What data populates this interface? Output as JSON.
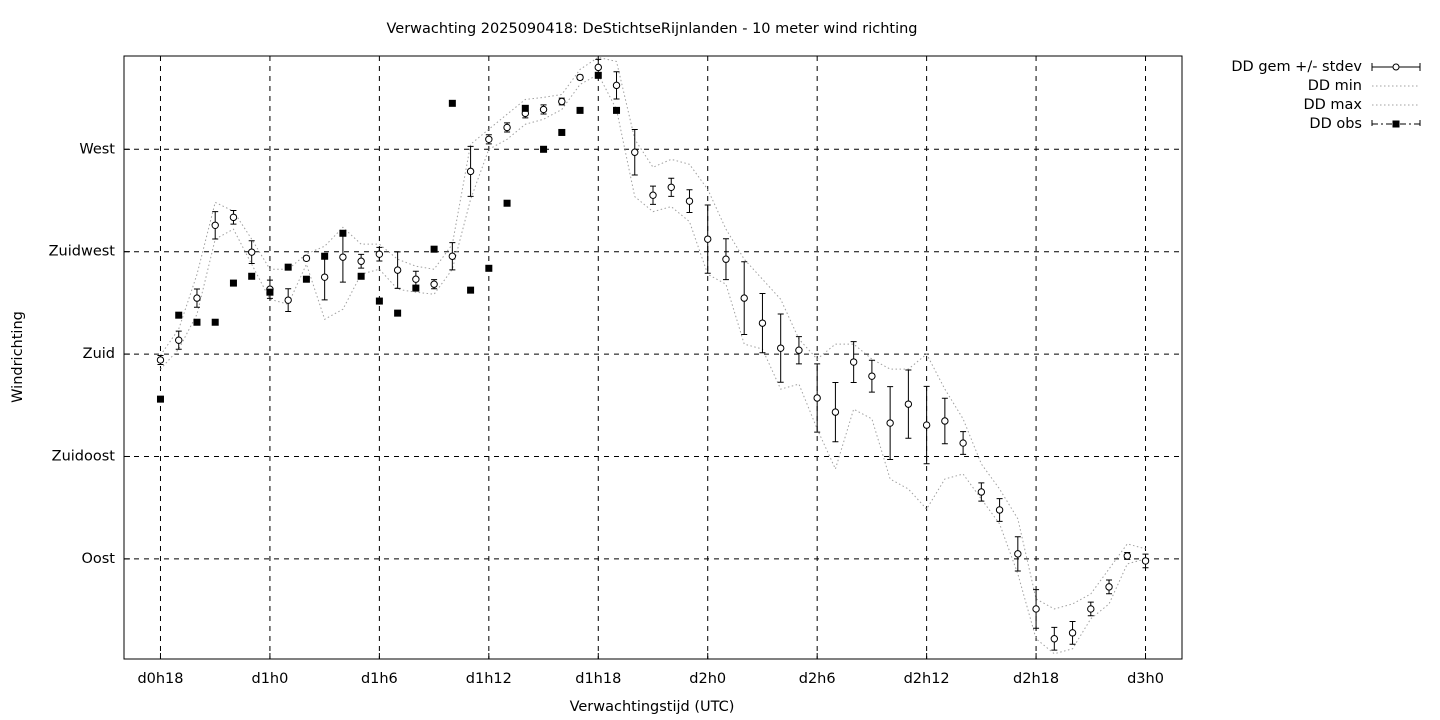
{
  "chart_data": {
    "type": "errorbar",
    "title": "Verwachting 2025090418: DeStichtseRijnlanden - 10 meter wind richting",
    "x_label": "Verwachtingstijd (UTC)",
    "y_label": "Windrichting",
    "xlim": [
      16,
      74
    ],
    "ylim": [
      46,
      311
    ],
    "xticks": [
      {
        "value": 18,
        "label": "d0h18"
      },
      {
        "value": 24,
        "label": "d1h0"
      },
      {
        "value": 30,
        "label": "d1h6"
      },
      {
        "value": 36,
        "label": "d1h12"
      },
      {
        "value": 42,
        "label": "d1h18"
      },
      {
        "value": 48,
        "label": "d2h0"
      },
      {
        "value": 54,
        "label": "d2h6"
      },
      {
        "value": 60,
        "label": "d2h12"
      },
      {
        "value": 66,
        "label": "d2h18"
      },
      {
        "value": 72,
        "label": "d3h0"
      }
    ],
    "yticks": [
      {
        "value": 90,
        "label": "Oost"
      },
      {
        "value": 135,
        "label": "Zuidoost"
      },
      {
        "value": 180,
        "label": "Zuid"
      },
      {
        "value": 225,
        "label": "Zuidwest"
      },
      {
        "value": 270,
        "label": "West"
      }
    ],
    "grid": true,
    "legend": "outside-top-right",
    "x": [
      18,
      19,
      20,
      21,
      22,
      23,
      24,
      25,
      26,
      27,
      28,
      29,
      30,
      31,
      32,
      33,
      34,
      35,
      36,
      37,
      38,
      39,
      40,
      41,
      42,
      43,
      44,
      45,
      46,
      47,
      48,
      49,
      50,
      51,
      52,
      53,
      54,
      55,
      56,
      57,
      58,
      59,
      60,
      61,
      62,
      63,
      64,
      65,
      66,
      67,
      68,
      69,
      70,
      71,
      72
    ],
    "series": [
      {
        "name": "DD gem +/- stdev",
        "style": "errorbars",
        "color": "#000000",
        "values": [
          177.4,
          186.1,
          204.6,
          236.6,
          240.1,
          224.8,
          208.5,
          203.7,
          222.1,
          213.8,
          222.6,
          220.8,
          223.9,
          216.9,
          212.9,
          210.7,
          223,
          260.3,
          274.4,
          279.6,
          285.8,
          287.5,
          291,
          301.6,
          306,
          298.1,
          268.7,
          249.8,
          253.3,
          247.2,
          230.5,
          221.7,
          204.6,
          193.6,
          182.6,
          181.7,
          160.7,
          154.5,
          176.5,
          170.3,
          149.7,
          158,
          148.8,
          150.6,
          140.9,
          119.4,
          111.5,
          92.2,
          68,
          54.9,
          57.5,
          68,
          77.7,
          91.3,
          89.1
        ],
        "errors": [
          2,
          4,
          4,
          6,
          3,
          5,
          4,
          5,
          1,
          10,
          11,
          3,
          3,
          8,
          3.5,
          2,
          6,
          11,
          2,
          2,
          2,
          2,
          1.5,
          1,
          3.5,
          6,
          10,
          4,
          4,
          5,
          15,
          9,
          16,
          13,
          15,
          6,
          15,
          13,
          9,
          7,
          16,
          15,
          17,
          10,
          5,
          4,
          5,
          7.5,
          8.5,
          5,
          5,
          3,
          3,
          1.5,
          3
        ]
      },
      {
        "name": "DD min",
        "style": "dotted",
        "color": "#a0a0a0",
        "values": [
          173.4,
          182.2,
          197.5,
          230.5,
          234.9,
          219.5,
          204.1,
          201.9,
          219.5,
          195.3,
          199.7,
          215.1,
          217.3,
          208.5,
          207.2,
          206.3,
          217.3,
          248,
          270,
          274.4,
          281,
          283.2,
          287.5,
          298.5,
          302.9,
          287.5,
          249.2,
          242.6,
          244.8,
          238.2,
          215.1,
          210.7,
          184.4,
          182.2,
          164.6,
          166.8,
          147.1,
          129.5,
          155.8,
          151.5,
          125.1,
          120.7,
          111.9,
          125.1,
          127.3,
          116.3,
          105.4,
          83.4,
          54.9,
          48.3,
          50.5,
          63.7,
          70.2,
          87.8,
          90
        ]
      },
      {
        "name": "DD max",
        "style": "dotted",
        "color": "#a0a0a0",
        "values": [
          179.5,
          191,
          215,
          246.7,
          242.8,
          230.5,
          217.3,
          217.3,
          224,
          227.4,
          235.7,
          228.3,
          228.3,
          221.7,
          218.6,
          217.3,
          228.3,
          272.2,
          278.8,
          285.4,
          291.9,
          292.8,
          294.1,
          305.1,
          310.4,
          308.6,
          274.4,
          262.1,
          265.6,
          263.4,
          252.4,
          234.9,
          221.7,
          212.9,
          204.1,
          186.6,
          177.8,
          184.4,
          184.4,
          177.8,
          173.4,
          173.4,
          180,
          164.6,
          151.5,
          131.7,
          120.7,
          107.6,
          72.4,
          68,
          70.2,
          74.6,
          85.6,
          96.6,
          94.4
        ]
      },
      {
        "name": "DD obs",
        "style": "points",
        "color": "#000000",
        "values": [
          160.2,
          197.1,
          194,
          194,
          211.2,
          214.2,
          207.2,
          218.2,
          212.9,
          223,
          233.1,
          214.2,
          203.3,
          198,
          209,
          226.1,
          290.2,
          208.1,
          217.7,
          246.3,
          288,
          270,
          277.4,
          287.1,
          302.5,
          287.1,
          null,
          null,
          null,
          null,
          null,
          null,
          null,
          null,
          null,
          null,
          null,
          null,
          null,
          null,
          null,
          null,
          null,
          null,
          null,
          null,
          null,
          null,
          null,
          null,
          null,
          null,
          null,
          null,
          null
        ]
      }
    ]
  }
}
